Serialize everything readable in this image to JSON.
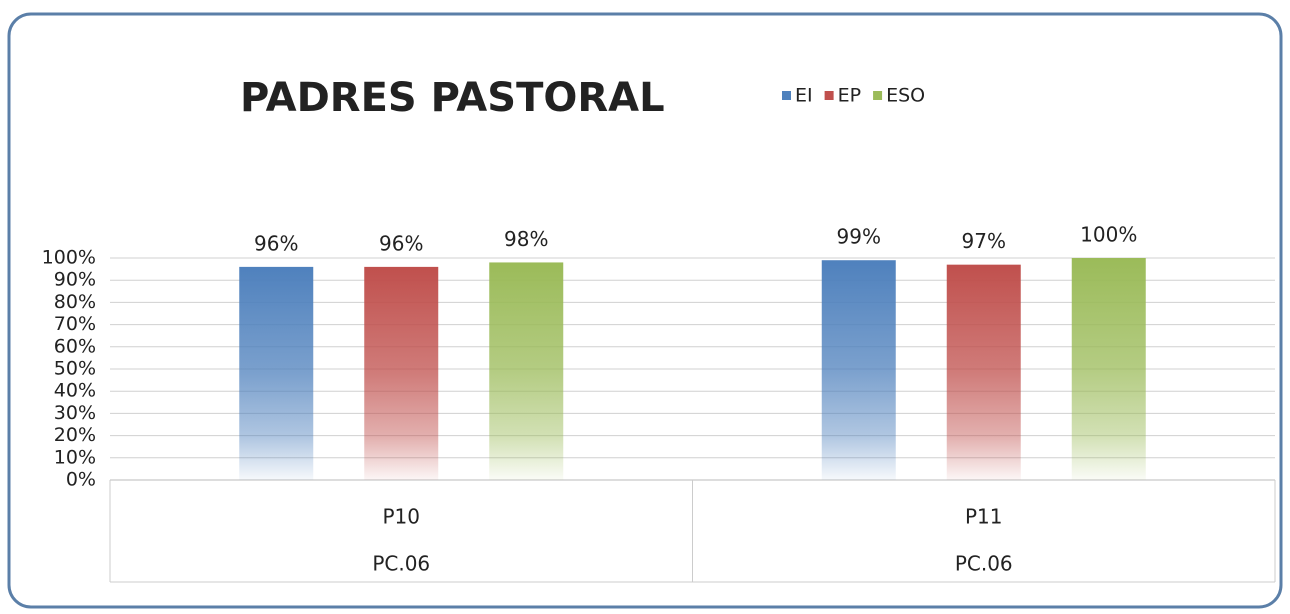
{
  "chart_data": {
    "type": "bar",
    "title": "PADRES PASTORAL",
    "categories": [
      "P10",
      "P11"
    ],
    "category_groups": [
      "PC.06",
      "PC.06"
    ],
    "series": [
      {
        "name": "EI",
        "color": "#4f81bd",
        "values": [
          96,
          99
        ],
        "value_labels": [
          "96%",
          "99%"
        ]
      },
      {
        "name": "EP",
        "color": "#c0504d",
        "values": [
          96,
          97
        ],
        "value_labels": [
          "96%",
          "97%"
        ]
      },
      {
        "name": "ESO",
        "color": "#9bbb59",
        "values": [
          98,
          100
        ],
        "value_labels": [
          "98%",
          "100%"
        ]
      }
    ],
    "ylim": [
      0,
      100
    ],
    "yticks": [
      {
        "value": 0,
        "label": "0%"
      },
      {
        "value": 10,
        "label": "10%"
      },
      {
        "value": 20,
        "label": "20%"
      },
      {
        "value": 30,
        "label": "30%"
      },
      {
        "value": 40,
        "label": "40%"
      },
      {
        "value": 50,
        "label": "50%"
      },
      {
        "value": 60,
        "label": "60%"
      },
      {
        "value": 70,
        "label": "70%"
      },
      {
        "value": 80,
        "label": "80%"
      },
      {
        "value": 90,
        "label": "90%"
      },
      {
        "value": 100,
        "label": "100%"
      }
    ],
    "grid": true,
    "legend": "top"
  }
}
